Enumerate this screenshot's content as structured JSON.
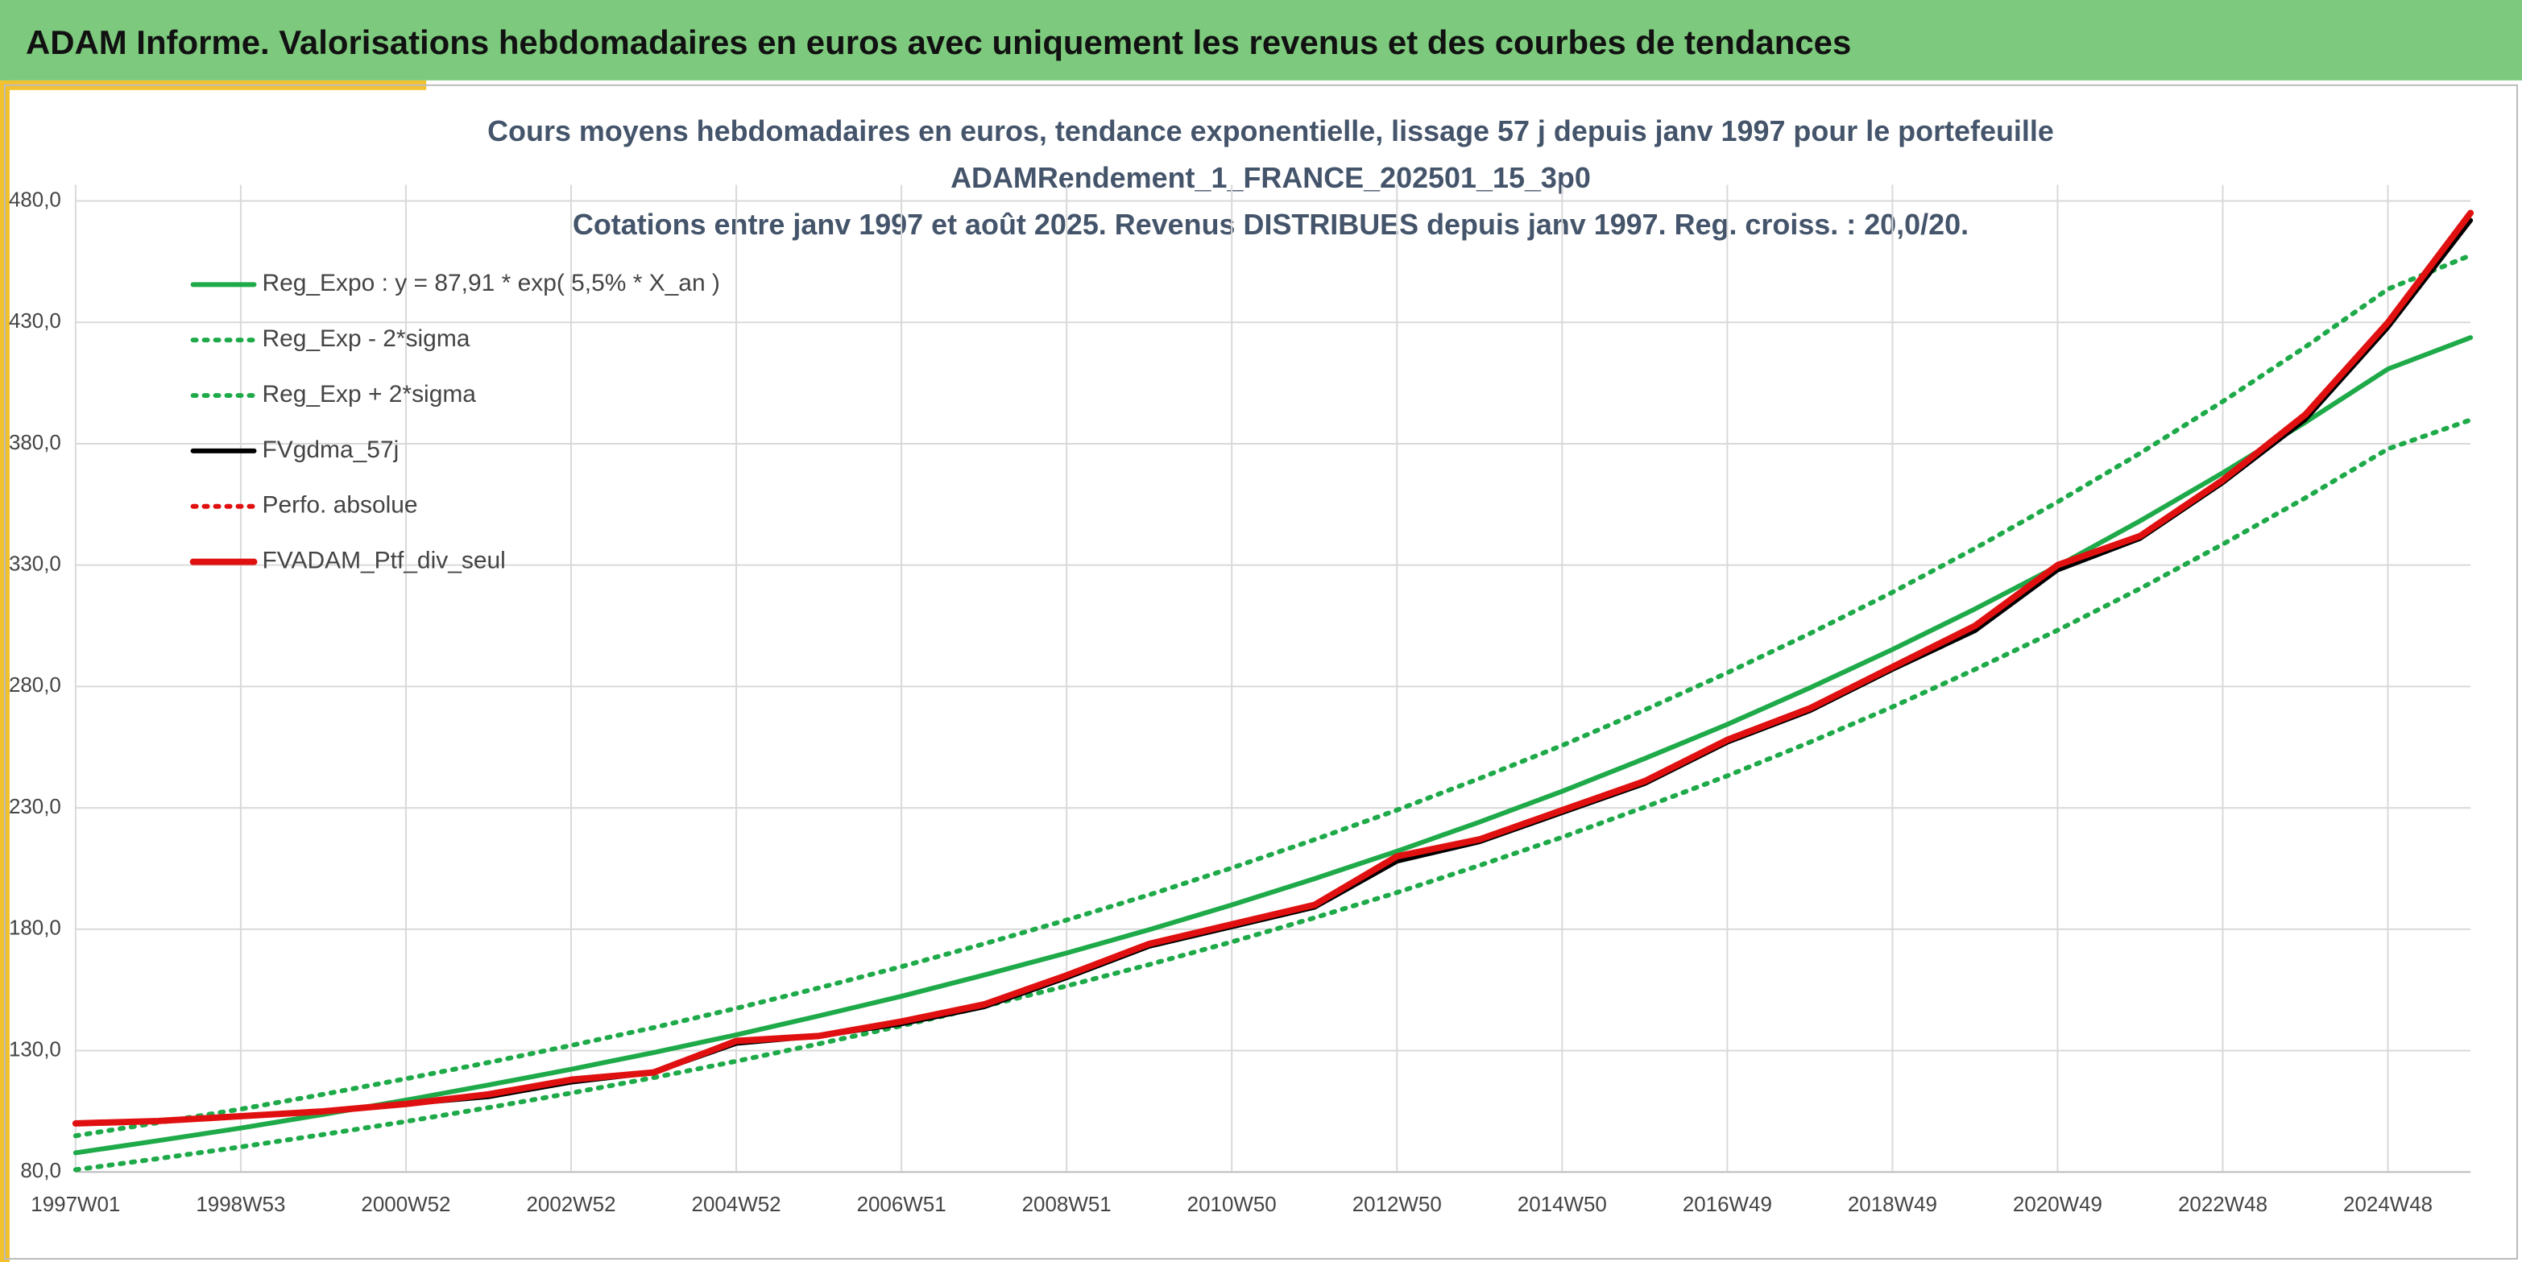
{
  "header": {
    "title": "ADAM Informe. Valorisations hebdomadaires en euros avec uniquement les revenus et des courbes de tendances"
  },
  "chart_data": {
    "type": "line",
    "title": [
      "Cours moyens hebdomadaires en euros, tendance exponentielle, lissage 57 j depuis janv 1997 pour le portefeuille",
      "ADAMRendement_1_FRANCE_202501_15_3p0",
      "Cotations entre janv 1997 et août 2025. Revenus DISTRIBUES depuis janv 1997. Reg. croiss. : 20,0/20."
    ],
    "categories": [
      "1997W01",
      null,
      "1998W53",
      null,
      "2000W52",
      null,
      "2002W52",
      null,
      "2004W52",
      null,
      "2006W51",
      null,
      "2008W51",
      null,
      "2010W50",
      null,
      "2012W50",
      null,
      "2014W50",
      null,
      "2016W49",
      null,
      "2018W49",
      null,
      "2020W49",
      null,
      "2022W48",
      null,
      "2024W48",
      null
    ],
    "ylim": [
      80,
      480
    ],
    "yticks": [
      {
        "value": 80,
        "label": "80,0"
      },
      {
        "value": 130,
        "label": "130,0"
      },
      {
        "value": 180,
        "label": "180,0"
      },
      {
        "value": 230,
        "label": "230,0"
      },
      {
        "value": 280,
        "label": "280,0"
      },
      {
        "value": 330,
        "label": "330,0"
      },
      {
        "value": 380,
        "label": "380,0"
      },
      {
        "value": 430,
        "label": "430,0"
      },
      {
        "value": 480,
        "label": "480,0"
      }
    ],
    "grid": true,
    "legend": "upper left",
    "series": [
      {
        "name": "Reg_Expo : y = 87,91 * exp( 5,5% *  X_an )",
        "color": "#1faa4a",
        "dash": "solid",
        "width": 3,
        "values": [
          87.9,
          92.9,
          98.1,
          103.7,
          109.6,
          115.8,
          122.3,
          129.2,
          136.5,
          144.3,
          152.4,
          161.1,
          170.2,
          179.8,
          190.0,
          200.8,
          212.1,
          224.2,
          236.8,
          250.3,
          264.4,
          279.4,
          295.2,
          311.9,
          329.6,
          348.2,
          368.0,
          388.8,
          410.8,
          423.7
        ]
      },
      {
        "name": "Reg_Exp - 2*sigma",
        "color": "#1faa4a",
        "dash": "dotted",
        "width": 3,
        "values": [
          80.9,
          85.5,
          90.3,
          95.4,
          100.8,
          106.5,
          112.5,
          118.9,
          125.6,
          132.8,
          140.2,
          148.2,
          156.6,
          165.4,
          174.8,
          184.7,
          195.1,
          206.3,
          217.9,
          230.3,
          243.2,
          257.0,
          271.6,
          287.0,
          303.2,
          320.3,
          338.6,
          357.7,
          377.9,
          389.8
        ]
      },
      {
        "name": "Reg_Exp + 2*sigma",
        "color": "#1faa4a",
        "dash": "dotted",
        "width": 3,
        "values": [
          94.9,
          100.3,
          105.9,
          112.0,
          118.4,
          125.1,
          132.1,
          139.5,
          147.4,
          155.8,
          164.6,
          174.0,
          183.8,
          194.2,
          205.2,
          216.9,
          229.1,
          242.1,
          255.7,
          270.3,
          285.6,
          301.8,
          318.8,
          336.9,
          356.0,
          376.1,
          397.4,
          419.9,
          443.7,
          457.6
        ]
      },
      {
        "name": "FVgdma_57j",
        "color": "#000000",
        "dash": "solid",
        "width": 3,
        "values": [
          100,
          101,
          103,
          105,
          108,
          111,
          117,
          121,
          133,
          136,
          141,
          148,
          160,
          173,
          181,
          189,
          208,
          216,
          228,
          240,
          257,
          270,
          287,
          303,
          328,
          341,
          364,
          390,
          428,
          472
        ]
      },
      {
        "name": "Perfo. absolue",
        "color": "#e01010",
        "dash": "dotted",
        "width": 3,
        "values": [
          100,
          101,
          103,
          105,
          108,
          112,
          118,
          121,
          134,
          136,
          142,
          149,
          161,
          174,
          182,
          190,
          210,
          217,
          229,
          241,
          258,
          271,
          288,
          305,
          330,
          342,
          365,
          392,
          430,
          475
        ]
      },
      {
        "name": "FVADAM_Ptf_div_seul",
        "color": "#e01010",
        "dash": "solid",
        "width": 4,
        "values": [
          100,
          101,
          103,
          105,
          108,
          112,
          118,
          121,
          134,
          136,
          142,
          149,
          161,
          174,
          182,
          190,
          210,
          217,
          229,
          241,
          258,
          271,
          288,
          305,
          330,
          342,
          365,
          392,
          430,
          475
        ]
      }
    ]
  }
}
